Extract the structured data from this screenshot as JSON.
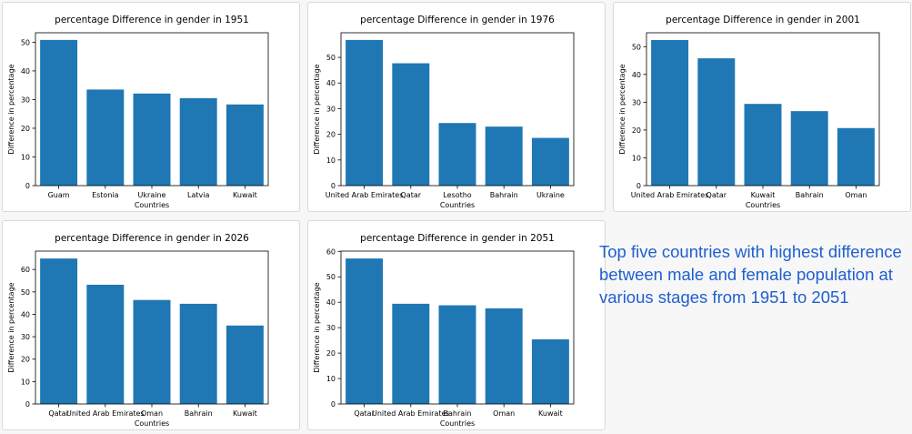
{
  "caption": "Top five countries with highest difference between male and female population at various stages from 1951 to 2051",
  "colors": {
    "bar": "#1f77b4",
    "caption": "#1f5fd0",
    "axis": "#000000",
    "background": "#f7f7f7",
    "card": "#ffffff"
  },
  "chart_data": [
    {
      "type": "bar",
      "title": "percentage Difference in gender in 1951",
      "xlabel": "Countries",
      "ylabel": "Difference in percentage",
      "categories": [
        "Guam",
        "Estonia",
        "Ukraine",
        "Latvia",
        "Kuwait"
      ],
      "values": [
        50.8,
        33.5,
        32.1,
        30.5,
        28.3
      ],
      "ylim": [
        0,
        53.3
      ],
      "yticks": [
        0,
        10,
        20,
        30,
        40,
        50
      ],
      "grid": false
    },
    {
      "type": "bar",
      "title": "percentage Difference in gender in 1976",
      "xlabel": "Countries",
      "ylabel": "Difference in percentage",
      "categories": [
        "United Arab Emirates",
        "Qatar",
        "Lesotho",
        "Bahrain",
        "Ukraine"
      ],
      "values": [
        56.8,
        47.7,
        24.4,
        23.0,
        18.6
      ],
      "ylim": [
        0,
        59.6
      ],
      "yticks": [
        0,
        10,
        20,
        30,
        40,
        50
      ],
      "grid": false
    },
    {
      "type": "bar",
      "title": "percentage Difference in gender in 2001",
      "xlabel": "Countries",
      "ylabel": "Difference in percentage",
      "categories": [
        "United Arab Emirates",
        "Qatar",
        "Kuwait",
        "Bahrain",
        "Oman"
      ],
      "values": [
        52.4,
        45.8,
        29.4,
        26.8,
        20.7
      ],
      "ylim": [
        0,
        55.0
      ],
      "yticks": [
        0,
        10,
        20,
        30,
        40,
        50
      ],
      "grid": false
    },
    {
      "type": "bar",
      "title": "percentage Difference in gender in 2026",
      "xlabel": "Countries",
      "ylabel": "Difference in percentage",
      "categories": [
        "Qatar",
        "United Arab Emirates",
        "Oman",
        "Bahrain",
        "Kuwait"
      ],
      "values": [
        64.9,
        53.2,
        46.4,
        44.7,
        35.0
      ],
      "ylim": [
        0,
        68.2
      ],
      "yticks": [
        0,
        10,
        20,
        30,
        40,
        50,
        60
      ],
      "grid": false
    },
    {
      "type": "bar",
      "title": "percentage Difference in gender in 2051",
      "xlabel": "Countries",
      "ylabel": "Difference in percentage",
      "categories": [
        "Qatar",
        "United Arab Emirates",
        "Bahrain",
        "Oman",
        "Kuwait"
      ],
      "values": [
        57.2,
        39.4,
        38.8,
        37.6,
        25.4
      ],
      "ylim": [
        0,
        60.1
      ],
      "yticks": [
        0,
        10,
        20,
        30,
        40,
        50,
        60
      ],
      "grid": false
    }
  ]
}
